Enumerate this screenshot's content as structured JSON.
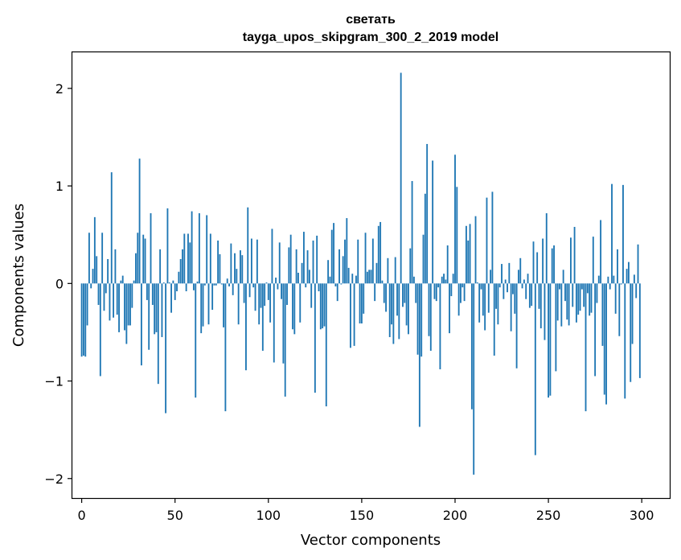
{
  "chart_data": {
    "type": "bar",
    "title": "светать",
    "subtitle": "tayga_upos_skipgram_300_2_2019 model",
    "xlabel": "Vector components",
    "ylabel": "Components values",
    "xlim": [
      -5,
      315
    ],
    "ylim": [
      -2.2,
      2.37
    ],
    "xticks": [
      0,
      50,
      100,
      150,
      200,
      250,
      300
    ],
    "yticks": [
      -2,
      -1,
      0,
      1,
      2
    ],
    "xtick_labels": [
      "0",
      "50",
      "100",
      "150",
      "200",
      "250",
      "300"
    ],
    "ytick_labels": [
      "−2",
      "−1",
      "0",
      "1",
      "2"
    ],
    "bar_color": "#1f77b4",
    "grid": false,
    "x": "0..299 (component index)",
    "values": [
      -0.75,
      -0.74,
      -0.75,
      -0.43,
      0.52,
      -0.05,
      0.15,
      0.68,
      0.28,
      -0.22,
      -0.95,
      0.52,
      -0.28,
      -0.1,
      0.25,
      -0.38,
      1.14,
      -0.35,
      0.35,
      -0.32,
      -0.5,
      0.03,
      0.08,
      -0.48,
      -0.62,
      -0.43,
      -0.43,
      -0.25,
      0.03,
      0.31,
      0.52,
      1.28,
      -0.84,
      0.5,
      0.46,
      -0.17,
      -0.68,
      0.72,
      -0.22,
      -0.52,
      -0.5,
      -1.03,
      0.35,
      -0.55,
      0.01,
      -1.33,
      0.77,
      0.01,
      -0.3,
      0.03,
      -0.17,
      -0.08,
      0.12,
      0.25,
      0.35,
      0.51,
      -0.08,
      0.51,
      0.42,
      0.74,
      -0.07,
      -1.17,
      0.02,
      0.72,
      -0.51,
      -0.44,
      -0.02,
      0.7,
      -0.42,
      0.51,
      -0.27,
      -0.02,
      -0.02,
      0.44,
      0.3,
      -0.01,
      -0.45,
      -1.31,
      0.05,
      -0.03,
      0.41,
      -0.12,
      0.31,
      0.15,
      -0.42,
      0.34,
      0.29,
      -0.2,
      -0.89,
      0.78,
      -0.14,
      0.46,
      -0.04,
      -0.28,
      0.45,
      -0.42,
      -0.25,
      -0.69,
      -0.23,
      0.01,
      -0.17,
      -0.4,
      0.56,
      -0.81,
      0.06,
      -0.06,
      0.42,
      -0.16,
      -0.82,
      -1.16,
      -0.22,
      0.37,
      0.5,
      -0.47,
      -0.52,
      0.35,
      0.11,
      -0.4,
      0.21,
      0.53,
      -0.04,
      0.34,
      0.14,
      -0.25,
      0.44,
      -1.12,
      0.49,
      -0.08,
      -0.47,
      -0.46,
      -0.44,
      -1.26,
      0.24,
      0.07,
      0.55,
      0.62,
      -0.03,
      -0.18,
      0.35,
      -0.01,
      0.28,
      0.45,
      0.67,
      0.16,
      -0.66,
      0.1,
      -0.64,
      0.08,
      0.45,
      -0.41,
      -0.41,
      -0.31,
      0.52,
      0.12,
      0.14,
      0.14,
      0.46,
      -0.18,
      0.21,
      0.59,
      0.63,
      0.03,
      -0.2,
      -0.29,
      0.26,
      -0.55,
      -0.42,
      -0.62,
      0.27,
      -0.33,
      -0.57,
      2.16,
      -0.24,
      -0.2,
      -0.43,
      -0.52,
      0.36,
      1.05,
      0.07,
      -0.2,
      -0.73,
      -1.47,
      -0.75,
      0.5,
      0.92,
      1.43,
      -0.54,
      -0.69,
      1.26,
      -0.16,
      -0.18,
      -0.04,
      -0.88,
      0.07,
      0.1,
      0.04,
      0.39,
      -0.51,
      -0.13,
      0.1,
      1.32,
      0.99,
      -0.33,
      -0.2,
      -0.04,
      -0.18,
      0.59,
      0.44,
      0.61,
      -1.29,
      -1.96,
      0.69,
      0.01,
      -0.4,
      -0.06,
      -0.33,
      -0.48,
      0.88,
      -0.3,
      0.14,
      0.94,
      -0.74,
      -0.26,
      -0.42,
      -0.04,
      0.2,
      -0.16,
      0.04,
      -0.09,
      0.21,
      -0.49,
      -0.11,
      -0.31,
      -0.87,
      0.14,
      0.26,
      -0.05,
      0.04,
      -0.16,
      0.1,
      -0.25,
      -0.23,
      0.43,
      -1.76,
      0.32,
      -0.26,
      -0.46,
      0.46,
      -0.58,
      0.72,
      -1.17,
      -1.15,
      0.36,
      0.39,
      -0.9,
      -0.38,
      -0.06,
      -0.44,
      0.14,
      -0.18,
      -0.37,
      -0.43,
      0.47,
      -0.24,
      0.58,
      -0.4,
      -0.32,
      -0.28,
      -0.06,
      -0.24,
      -1.31,
      -0.1,
      -0.33,
      -0.3,
      0.48,
      -0.95,
      -0.2,
      0.08,
      0.65,
      -0.64,
      -1.14,
      -1.24,
      0.07,
      -0.06,
      1.02,
      0.08,
      -0.31,
      0.35,
      -0.54,
      -0.01,
      1.01,
      -1.18,
      0.15,
      0.22,
      -1.01,
      -0.62,
      0.09,
      -0.15,
      0.4,
      -0.97
    ]
  }
}
